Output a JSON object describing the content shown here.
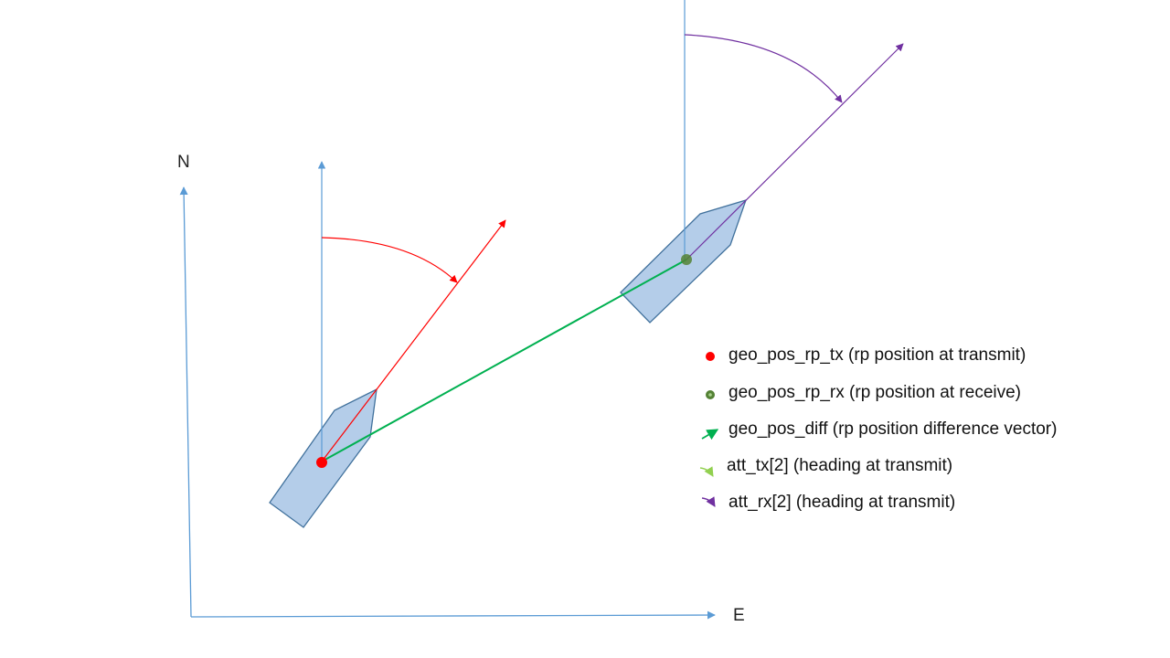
{
  "axes": {
    "north_label": "N",
    "east_label": "E"
  },
  "legend": [
    {
      "key": "geo_pos_rp_tx",
      "text": "geo_pos_rp_tx (rp position at transmit)",
      "symbol": "dot",
      "color": "#ff0000"
    },
    {
      "key": "geo_pos_rp_rx",
      "text": "geo_pos_rp_rx (rp position at receive)",
      "symbol": "dot",
      "color": "#548235"
    },
    {
      "key": "geo_pos_diff",
      "text": "geo_pos_diff (rp position difference vector)",
      "symbol": "arrow",
      "color": "#00b050"
    },
    {
      "key": "att_tx",
      "text": "att_tx[2] (heading at transmit)",
      "symbol": "curved-arrow",
      "color": "#92d050"
    },
    {
      "key": "att_rx",
      "text": "att_rx[2] (heading at transmit)",
      "symbol": "curved-arrow",
      "color": "#7030a0"
    }
  ],
  "colors": {
    "axis": "#5b9bd5",
    "ship_fill": "#b4cde9",
    "ship_stroke": "#41719c",
    "tx_heading": "#ff0000",
    "rx_heading": "#7030a0",
    "diff_vector": "#00b050",
    "rx_point": "#548235"
  }
}
